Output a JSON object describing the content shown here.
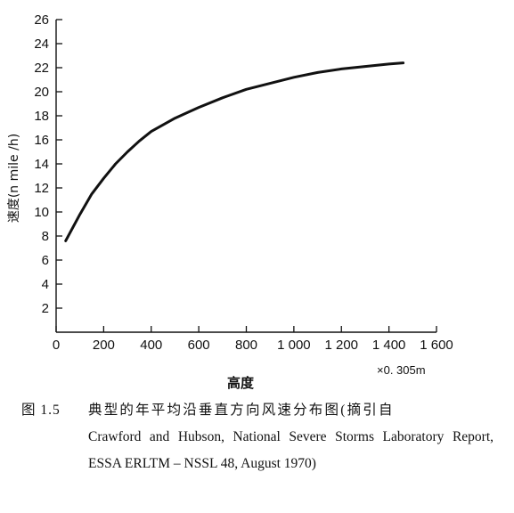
{
  "chart_data": {
    "type": "line",
    "title": "",
    "xlabel": "高度",
    "ylabel": "速度(n mile /h)",
    "x_unit_note": "×0. 305m",
    "xlim": [
      0,
      1600
    ],
    "ylim": [
      0,
      26
    ],
    "x_ticks": [
      0,
      200,
      400,
      600,
      800,
      1000,
      1200,
      1400,
      1600
    ],
    "x_tick_labels": [
      "0",
      "200",
      "400",
      "600",
      "800",
      "1 000",
      "1 200",
      "1 400",
      "1 600"
    ],
    "y_ticks": [
      2,
      4,
      6,
      8,
      10,
      12,
      14,
      16,
      18,
      20,
      22,
      24,
      26
    ],
    "y_tick_labels": [
      "2",
      "4",
      "6",
      "8",
      "10",
      "12",
      "14",
      "16",
      "18",
      "20",
      "22",
      "24",
      "26"
    ],
    "grid": false,
    "series": [
      {
        "x": [
          40,
          100,
          150,
          200,
          250,
          300,
          350,
          400,
          500,
          600,
          700,
          800,
          900,
          1000,
          1100,
          1200,
          1300,
          1400,
          1460
        ],
        "values": [
          7.6,
          9.8,
          11.5,
          12.8,
          14.0,
          15.0,
          15.9,
          16.7,
          17.8,
          18.7,
          19.5,
          20.2,
          20.7,
          21.2,
          21.6,
          21.9,
          22.1,
          22.3,
          22.4
        ]
      }
    ]
  },
  "caption": {
    "number": "图 1.5",
    "title": "典型的年平均沿垂直方向风速分布图(摘引自",
    "rest": "Crawford and Hubson, National Severe Storms Laboratory Report, ESSA ERLTM – NSSL 48, August 1970)"
  }
}
